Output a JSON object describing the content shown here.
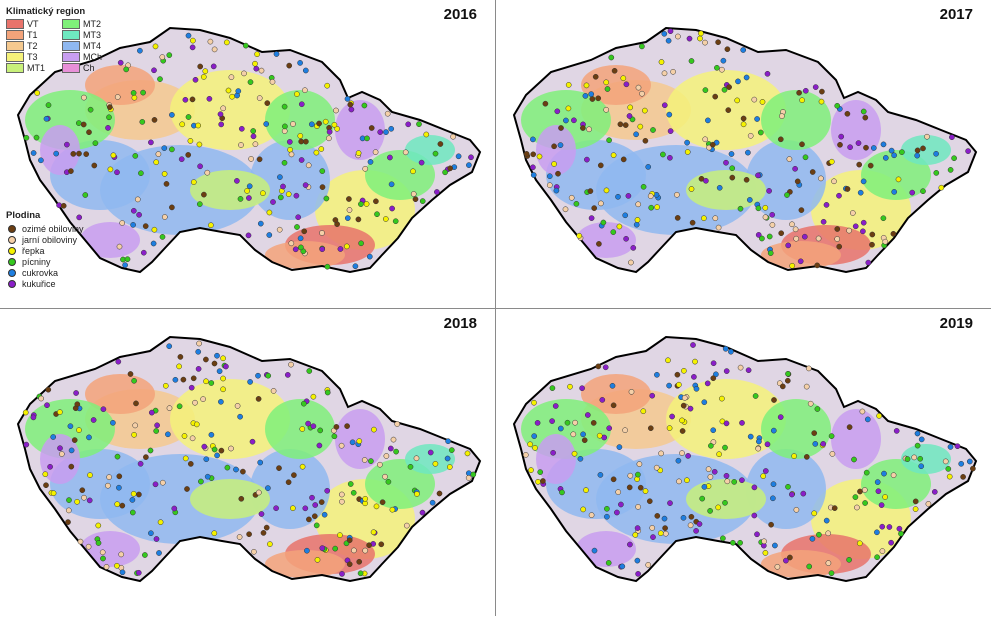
{
  "panels": [
    {
      "year": "2016",
      "seed": 11
    },
    {
      "year": "2017",
      "seed": 23
    },
    {
      "year": "2018",
      "seed": 37
    },
    {
      "year": "2019",
      "seed": 51
    }
  ],
  "legend": {
    "region_title": "Klimatický region",
    "regions": [
      {
        "label": "VT",
        "color": "#e8736b"
      },
      {
        "label": "MT2",
        "color": "#7ff07a"
      },
      {
        "label": "T1",
        "color": "#f3a37a"
      },
      {
        "label": "MT3",
        "color": "#6ee8c0"
      },
      {
        "label": "T2",
        "color": "#f5c98f"
      },
      {
        "label": "MT4",
        "color": "#8fb8f0"
      },
      {
        "label": "T3",
        "color": "#f5f27a"
      },
      {
        "label": "MCh",
        "color": "#c89ef0"
      },
      {
        "label": "MT1",
        "color": "#c8f07a"
      },
      {
        "label": "Ch",
        "color": "#e890d8"
      }
    ],
    "crop_title": "Plodina",
    "crops": [
      {
        "label": "ozimé obiloviny",
        "color": "#6b3e12"
      },
      {
        "label": "jarní obiloviny",
        "color": "#f5d0a8"
      },
      {
        "label": "řepka",
        "color": "#f5f200"
      },
      {
        "label": "pícniny",
        "color": "#35c81e"
      },
      {
        "label": "cukrovka",
        "color": "#1e7ee0"
      },
      {
        "label": "kukuřice",
        "color": "#8a1ec8"
      }
    ]
  }
}
